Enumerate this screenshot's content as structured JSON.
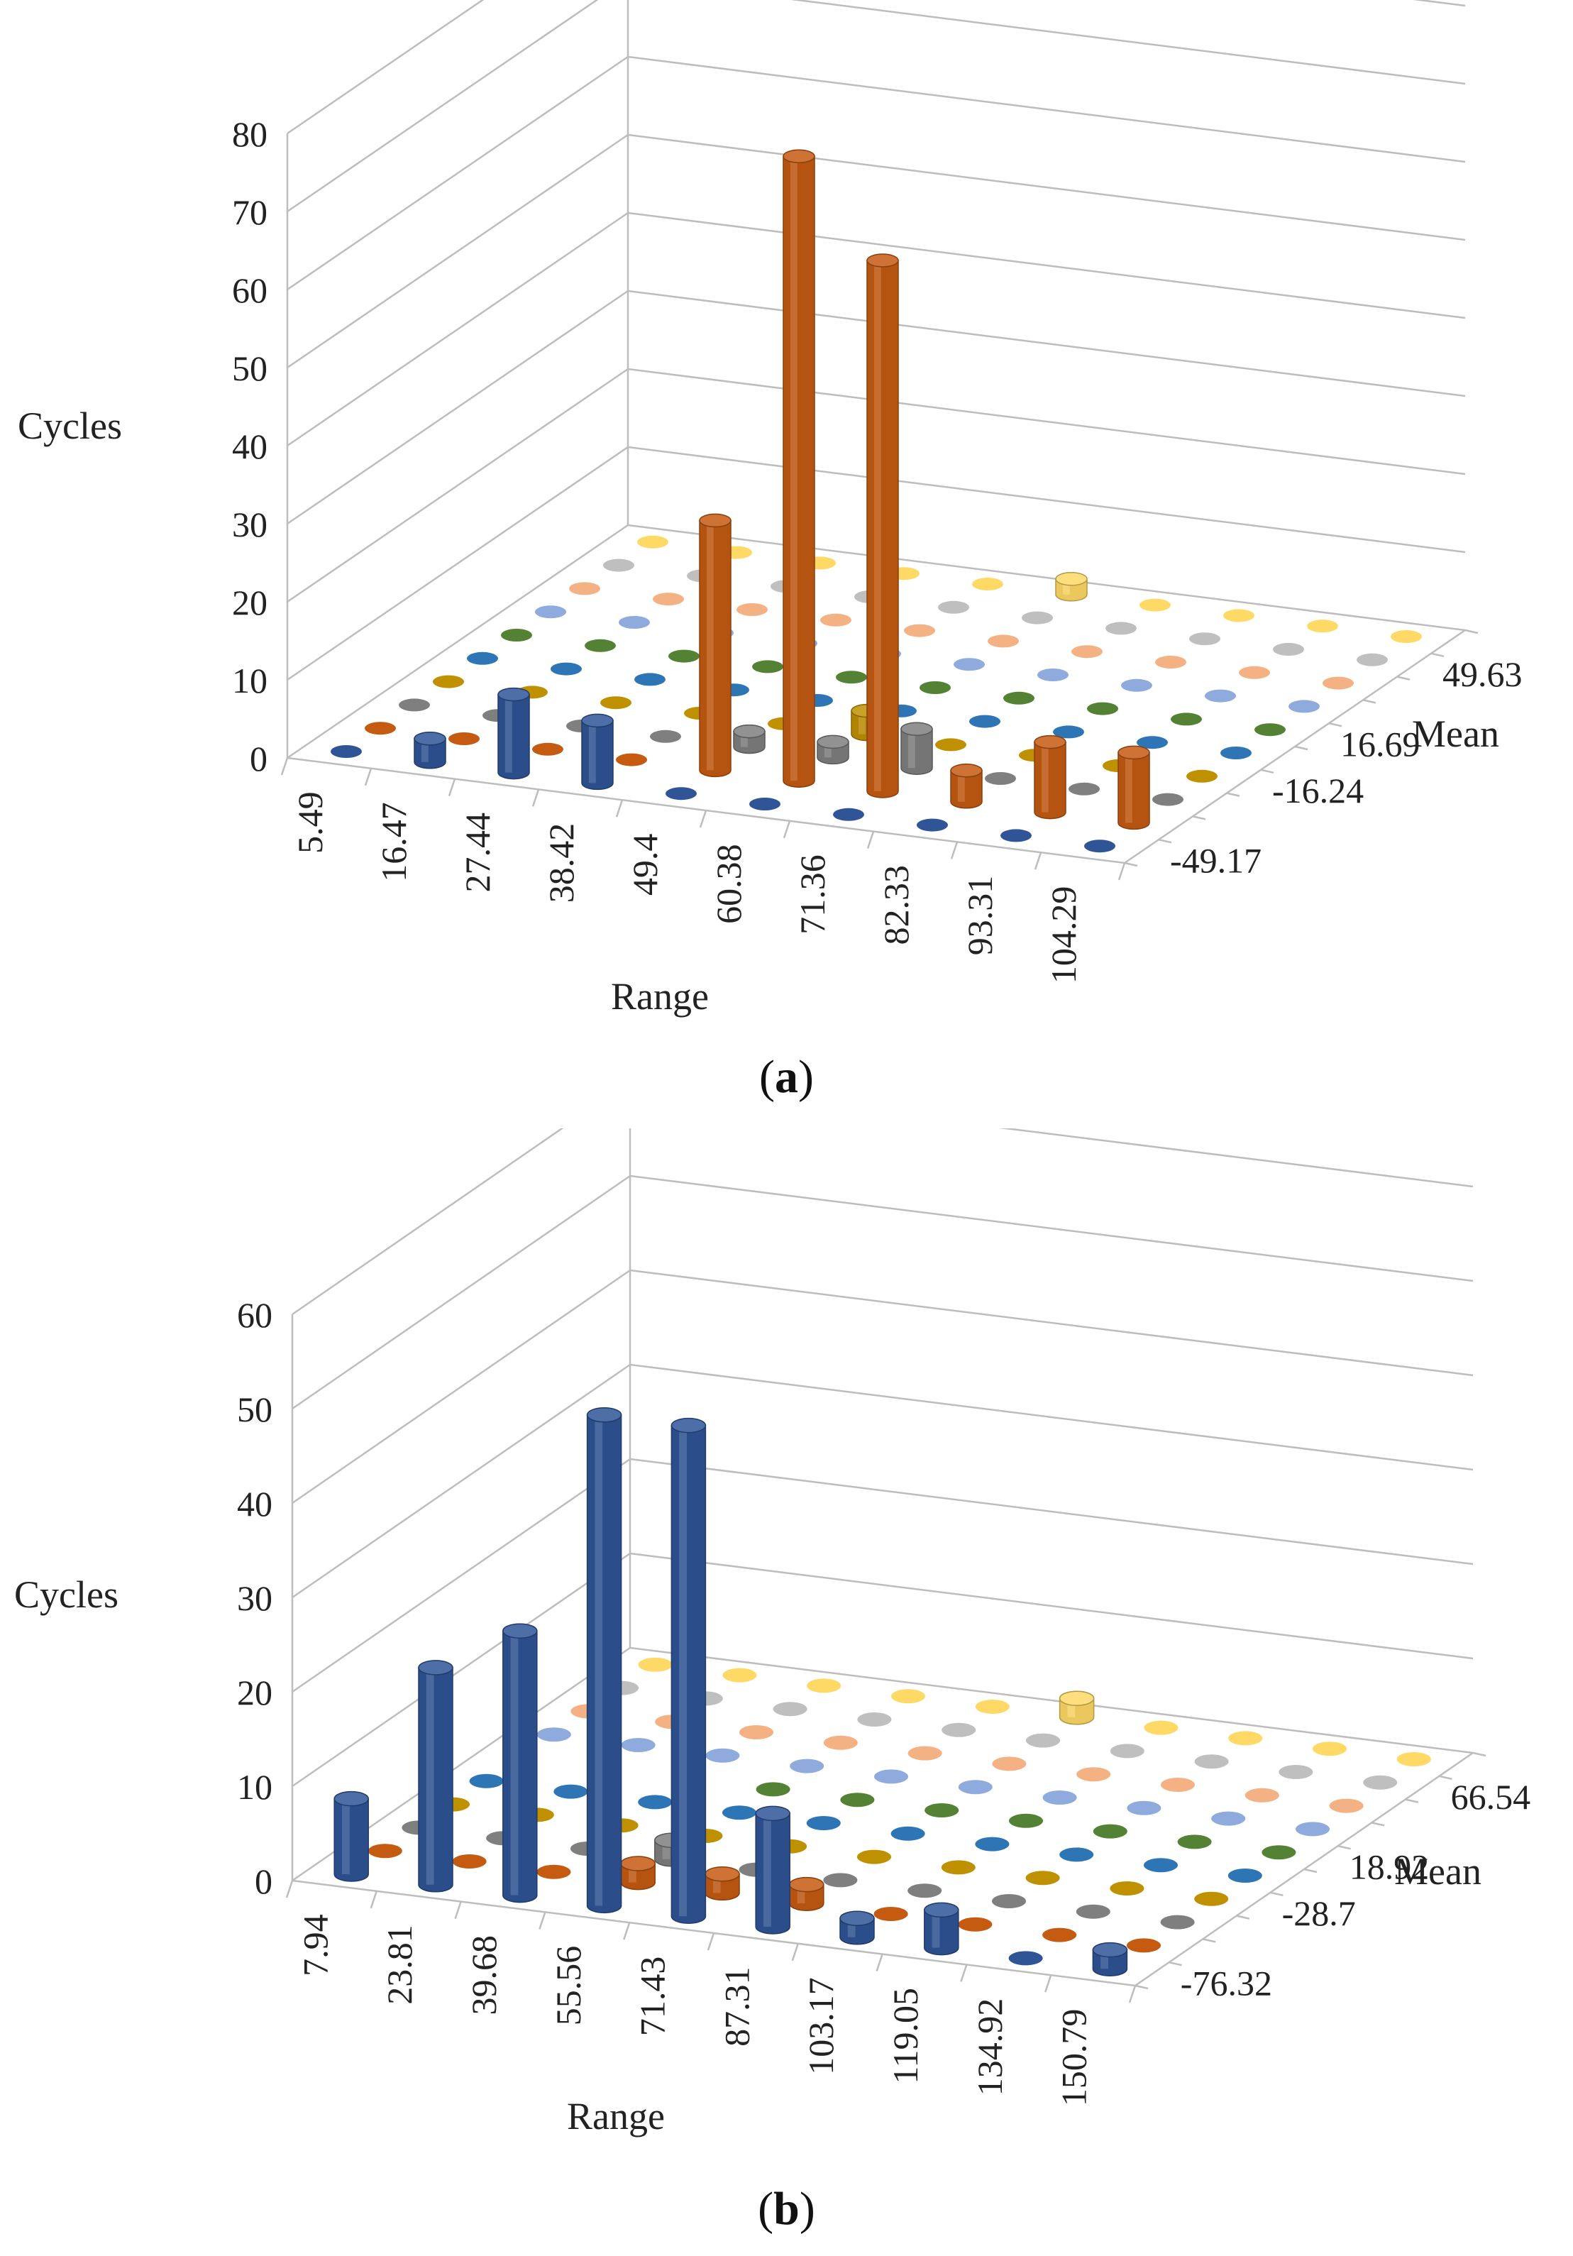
{
  "chart_data": [
    {
      "type": "bar3d",
      "panel_label": "a",
      "zlabel": "Cycles",
      "xlabel": "Range",
      "ylabel": "Mean",
      "zlim": [
        0,
        80
      ],
      "zticks": [
        "0",
        "10",
        "20",
        "30",
        "40",
        "50",
        "60",
        "70",
        "80"
      ],
      "range_categories": [
        "5.49",
        "16.47",
        "27.44",
        "38.42",
        "49.4",
        "60.38",
        "71.36",
        "82.33",
        "93.31",
        "104.29"
      ],
      "mean_categories": [
        "-49.17",
        "",
        "",
        "-16.24",
        "",
        "16.69",
        "",
        "",
        "49.63",
        ""
      ],
      "mean_tick_labels": [
        "-49.17",
        "-16.24",
        "16.69",
        "49.63"
      ],
      "series_colors": [
        "#2F5597",
        "#C55A11",
        "#7F7F7F",
        "#BF9000",
        "#2E75B6",
        "#548235",
        "#8FAADC",
        "#F4B183",
        "#BFBFBF",
        "#FFD966"
      ],
      "values": [
        [
          0,
          0,
          0,
          0,
          0,
          0,
          0,
          0,
          0,
          0
        ],
        [
          3,
          0,
          0,
          0,
          0,
          0,
          0,
          0,
          0,
          0
        ],
        [
          10,
          0,
          0,
          0,
          0,
          0,
          0,
          0,
          0,
          0
        ],
        [
          8,
          0,
          0,
          0,
          0,
          0,
          0,
          0,
          0,
          0
        ],
        [
          0,
          32,
          2,
          0,
          0,
          0,
          0,
          0,
          0,
          0
        ],
        [
          0,
          80,
          2,
          3,
          0,
          0,
          0,
          0,
          0,
          2
        ],
        [
          0,
          68,
          5,
          0,
          0,
          0,
          0,
          0,
          0,
          0
        ],
        [
          0,
          4,
          0,
          0,
          0,
          0,
          0,
          0,
          0,
          0
        ],
        [
          0,
          9,
          0,
          0,
          0,
          0,
          0,
          0,
          0,
          0
        ],
        [
          0,
          9,
          0,
          0,
          0,
          0,
          0,
          0,
          0,
          0
        ]
      ]
    },
    {
      "type": "bar3d",
      "panel_label": "b",
      "zlabel": "Cycles",
      "xlabel": "Range",
      "ylabel": "Mean",
      "zlim": [
        0,
        60
      ],
      "zticks": [
        "0",
        "10",
        "20",
        "30",
        "40",
        "50",
        "60"
      ],
      "range_categories": [
        "7.94",
        "23.81",
        "39.68",
        "55.56",
        "71.43",
        "87.31",
        "103.17",
        "119.05",
        "134.92",
        "150.79"
      ],
      "mean_categories": [
        "-76.32",
        "",
        "",
        "-28.7",
        "",
        "18.92",
        "",
        "",
        "66.54",
        ""
      ],
      "mean_tick_labels": [
        "-76.32",
        "-28.7",
        "18.92",
        "66.54"
      ],
      "series_colors": [
        "#2F5597",
        "#C55A11",
        "#7F7F7F",
        "#BF9000",
        "#2E75B6",
        "#548235",
        "#8FAADC",
        "#F4B183",
        "#BFBFBF",
        "#FFD966"
      ],
      "values": [
        [
          8,
          0,
          0,
          0,
          0,
          0,
          0,
          0,
          0,
          0
        ],
        [
          23,
          0,
          0,
          0,
          0,
          0,
          0,
          0,
          0,
          0
        ],
        [
          28,
          0,
          0,
          0,
          0,
          0,
          0,
          0,
          0,
          0
        ],
        [
          52,
          2,
          2,
          0,
          0,
          0,
          0,
          0,
          0,
          0
        ],
        [
          52,
          2,
          0,
          0,
          0,
          0,
          0,
          0,
          0,
          0
        ],
        [
          12,
          2,
          0,
          0,
          0,
          0,
          0,
          0,
          0,
          2
        ],
        [
          2,
          0,
          0,
          0,
          0,
          0,
          0,
          0,
          0,
          0
        ],
        [
          4,
          0,
          0,
          0,
          0,
          0,
          0,
          0,
          0,
          0
        ],
        [
          0,
          0,
          0,
          0,
          0,
          0,
          0,
          0,
          0,
          0
        ],
        [
          2,
          0,
          0,
          0,
          0,
          0,
          0,
          0,
          0,
          0
        ]
      ]
    }
  ]
}
